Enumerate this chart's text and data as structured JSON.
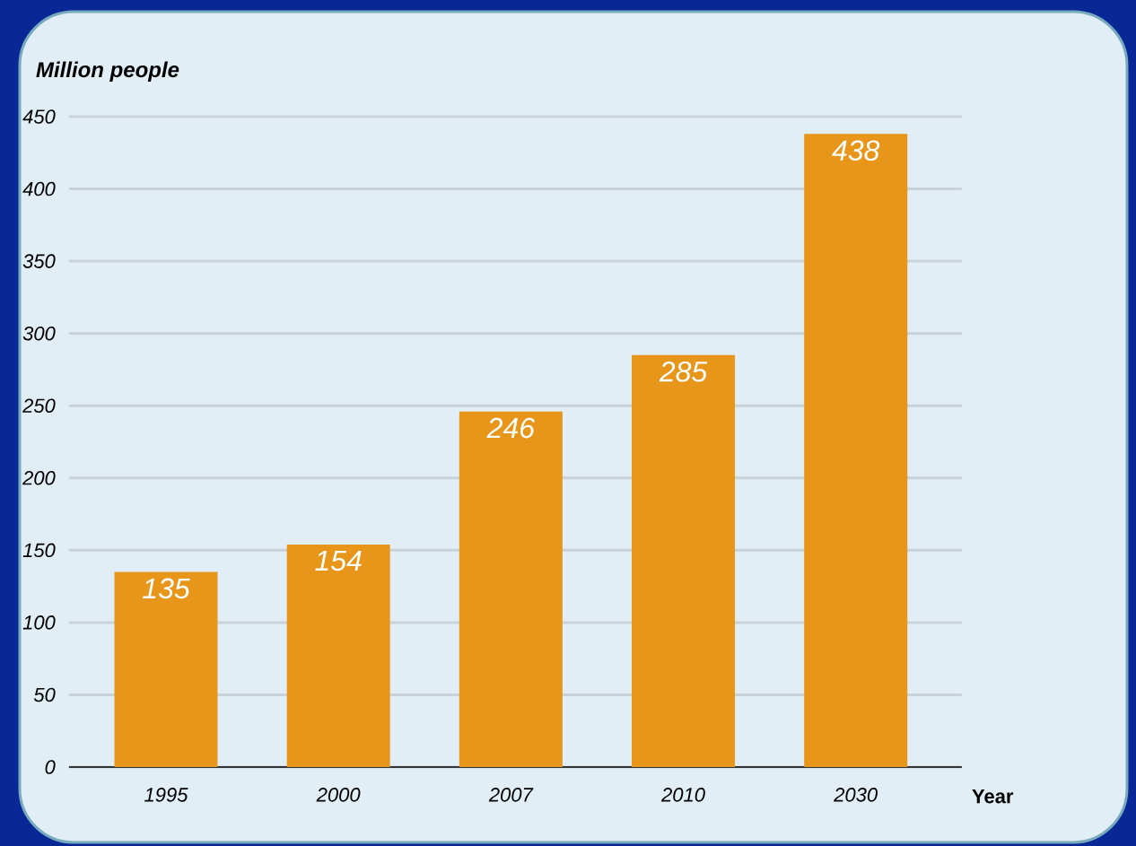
{
  "chart_data": {
    "type": "bar",
    "ylabel": "Million people",
    "xlabel": "Year",
    "categories": [
      "1995",
      "2000",
      "2007",
      "2010",
      "2030"
    ],
    "values": [
      135,
      154,
      246,
      285,
      438
    ],
    "color": "#e8961a",
    "ylim": [
      0,
      450
    ],
    "yticks": [
      0,
      50,
      100,
      150,
      200,
      250,
      300,
      350,
      400,
      450
    ],
    "grid": "y",
    "data_labels": true
  }
}
